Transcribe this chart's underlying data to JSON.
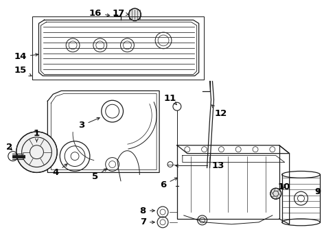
{
  "bg_color": "#ffffff",
  "line_color": "#1a1a1a",
  "label_color": "#000000",
  "fig_w": 4.89,
  "fig_h": 3.6,
  "dpi": 100,
  "font_size": 9.5,
  "lw": 0.9
}
